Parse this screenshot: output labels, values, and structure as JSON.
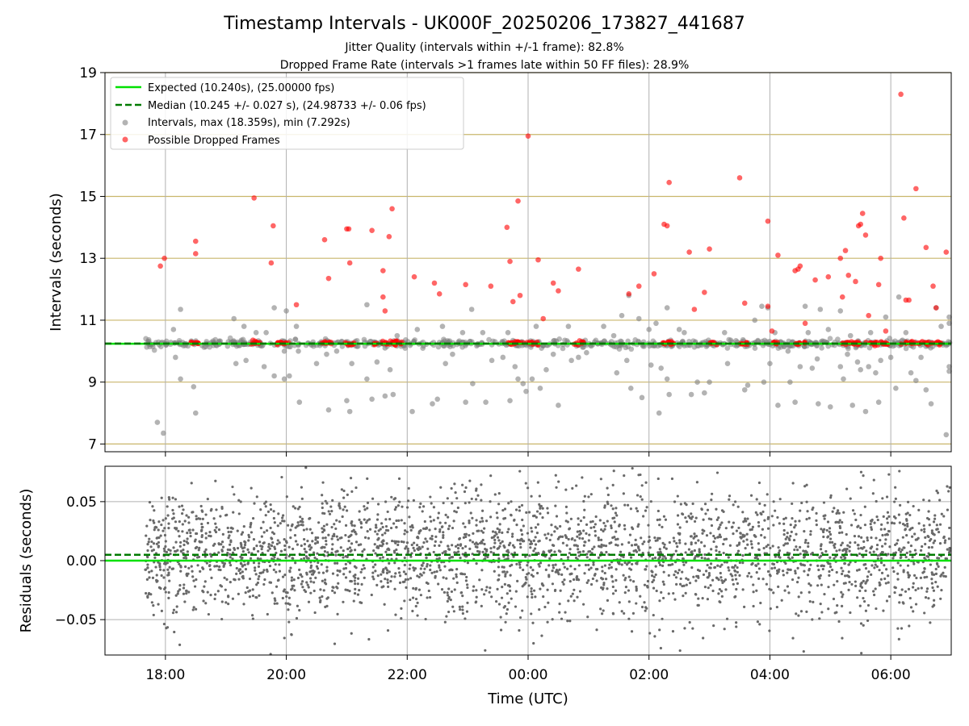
{
  "title": "Timestamp Intervals - UK000F_20250206_173827_441687",
  "subtitle_1": "Jitter Quality (intervals within +/-1 frame): 82.8%",
  "subtitle_2": "Dropped Frame Rate (intervals >1 frames late within 50 FF files): 28.9%",
  "colors": {
    "expected": "#00e000",
    "median": "#007a00",
    "intervals": "#808080",
    "dropped": "#ff0000",
    "hgrid": "#c9b66b",
    "vgrid": "#b0b0b0"
  },
  "chart_data": [
    {
      "type": "scatter",
      "ylabel": "Intervals (seconds)",
      "ylim": [
        6.75,
        19.0
      ],
      "yticks": [
        "7",
        "9",
        "11",
        "13",
        "15",
        "17",
        "19"
      ],
      "xlim": [
        "17:00",
        "07:00"
      ],
      "grid": true,
      "legend_position": "top-left",
      "legend": [
        "Expected (10.240s), (25.00000 fps)",
        "Median (10.245 +/- 0.027 s), (24.98733 +/- 0.06 fps)",
        "Intervals, max (18.359s), min (7.292s)",
        "Possible Dropped Frames"
      ],
      "expected_value": 10.24,
      "median_value": 10.245,
      "series": [
        {
          "name": "Intervals, max (18.359s), min (7.292s)",
          "color": "gray",
          "note_bulk": "dense band of points at ~10.24 s from 17:40 to 07:00",
          "points": [
            [
              "17:52",
              7.7
            ],
            [
              "17:58",
              7.35
            ],
            [
              "18:08",
              10.7
            ],
            [
              "18:10",
              9.8
            ],
            [
              "18:15",
              11.35
            ],
            [
              "18:15",
              9.1
            ],
            [
              "18:28",
              8.85
            ],
            [
              "18:30",
              8.0
            ],
            [
              "19:08",
              11.05
            ],
            [
              "19:10",
              9.6
            ],
            [
              "19:18",
              10.8
            ],
            [
              "19:20",
              9.7
            ],
            [
              "19:30",
              10.6
            ],
            [
              "19:38",
              9.5
            ],
            [
              "19:40",
              10.6
            ],
            [
              "19:48",
              9.2
            ],
            [
              "19:48",
              11.4
            ],
            [
              "19:58",
              9.1
            ],
            [
              "19:58",
              10.0
            ],
            [
              "20:00",
              11.3
            ],
            [
              "20:03",
              9.2
            ],
            [
              "20:10",
              10.8
            ],
            [
              "20:12",
              10.0
            ],
            [
              "20:13",
              8.35
            ],
            [
              "20:30",
              9.6
            ],
            [
              "20:40",
              9.9
            ],
            [
              "20:42",
              8.1
            ],
            [
              "20:50",
              10.0
            ],
            [
              "21:00",
              8.4
            ],
            [
              "21:03",
              8.05
            ],
            [
              "21:05",
              9.6
            ],
            [
              "21:20",
              11.5
            ],
            [
              "21:20",
              9.1
            ],
            [
              "21:25",
              8.45
            ],
            [
              "21:30",
              9.65
            ],
            [
              "21:38",
              10.1
            ],
            [
              "21:38",
              8.55
            ],
            [
              "21:43",
              9.4
            ],
            [
              "21:46",
              8.6
            ],
            [
              "21:50",
              10.5
            ],
            [
              "22:05",
              8.05
            ],
            [
              "22:10",
              10.7
            ],
            [
              "22:25",
              8.3
            ],
            [
              "22:30",
              8.45
            ],
            [
              "22:35",
              10.8
            ],
            [
              "22:38",
              9.6
            ],
            [
              "22:45",
              9.9
            ],
            [
              "22:55",
              10.6
            ],
            [
              "22:58",
              8.35
            ],
            [
              "23:04",
              11.35
            ],
            [
              "23:05",
              8.95
            ],
            [
              "23:15",
              10.6
            ],
            [
              "23:18",
              8.35
            ],
            [
              "23:24",
              9.7
            ],
            [
              "23:35",
              9.8
            ],
            [
              "23:40",
              10.6
            ],
            [
              "23:42",
              8.4
            ],
            [
              "23:47",
              9.5
            ],
            [
              "23:50",
              9.1
            ],
            [
              "23:55",
              8.95
            ],
            [
              "23:58",
              8.7
            ],
            [
              "00:04",
              9.1
            ],
            [
              "00:08",
              10.8
            ],
            [
              "00:12",
              8.8
            ],
            [
              "00:18",
              9.4
            ],
            [
              "00:25",
              9.9
            ],
            [
              "00:30",
              8.25
            ],
            [
              "00:40",
              10.8
            ],
            [
              "00:43",
              9.7
            ],
            [
              "00:50",
              9.8
            ],
            [
              "00:58",
              9.95
            ],
            [
              "01:06",
              10.3
            ],
            [
              "01:15",
              10.8
            ],
            [
              "01:25",
              10.5
            ],
            [
              "01:28",
              9.3
            ],
            [
              "01:33",
              11.15
            ],
            [
              "01:38",
              9.7
            ],
            [
              "01:40",
              11.8
            ],
            [
              "01:42",
              8.8
            ],
            [
              "01:50",
              11.05
            ],
            [
              "01:53",
              8.5
            ],
            [
              "02:00",
              10.7
            ],
            [
              "02:02",
              9.55
            ],
            [
              "02:07",
              10.9
            ],
            [
              "02:10",
              8.0
            ],
            [
              "02:12",
              9.45
            ],
            [
              "02:18",
              11.4
            ],
            [
              "02:18",
              9.1
            ],
            [
              "02:20",
              8.6
            ],
            [
              "02:30",
              10.7
            ],
            [
              "02:35",
              10.6
            ],
            [
              "02:42",
              8.6
            ],
            [
              "02:48",
              9.0
            ],
            [
              "02:55",
              8.65
            ],
            [
              "03:00",
              9.0
            ],
            [
              "03:15",
              10.6
            ],
            [
              "03:18",
              9.6
            ],
            [
              "03:25",
              10.2
            ],
            [
              "03:35",
              8.75
            ],
            [
              "03:38",
              8.9
            ],
            [
              "03:45",
              11.0
            ],
            [
              "03:52",
              11.45
            ],
            [
              "03:54",
              9.0
            ],
            [
              "03:58",
              11.4
            ],
            [
              "04:00",
              9.6
            ],
            [
              "04:05",
              10.6
            ],
            [
              "04:08",
              8.25
            ],
            [
              "04:18",
              10.0
            ],
            [
              "04:20",
              9.0
            ],
            [
              "04:25",
              8.35
            ],
            [
              "04:30",
              9.5
            ],
            [
              "04:35",
              11.45
            ],
            [
              "04:38",
              10.6
            ],
            [
              "04:42",
              9.45
            ],
            [
              "04:47",
              9.75
            ],
            [
              "04:48",
              8.3
            ],
            [
              "04:50",
              11.35
            ],
            [
              "04:58",
              10.7
            ],
            [
              "05:00",
              8.2
            ],
            [
              "05:10",
              9.5
            ],
            [
              "05:10",
              11.3
            ],
            [
              "05:13",
              9.1
            ],
            [
              "05:17",
              9.9
            ],
            [
              "05:20",
              10.5
            ],
            [
              "05:22",
              8.25
            ],
            [
              "05:27",
              9.65
            ],
            [
              "05:30",
              9.4
            ],
            [
              "05:35",
              8.05
            ],
            [
              "05:38",
              9.5
            ],
            [
              "05:40",
              10.6
            ],
            [
              "05:45",
              9.3
            ],
            [
              "05:48",
              8.35
            ],
            [
              "05:50",
              9.7
            ],
            [
              "05:55",
              11.1
            ],
            [
              "06:00",
              9.8
            ],
            [
              "06:05",
              8.8
            ],
            [
              "06:08",
              11.75
            ],
            [
              "06:10",
              10.2
            ],
            [
              "06:15",
              10.6
            ],
            [
              "06:20",
              9.3
            ],
            [
              "06:25",
              9.05
            ],
            [
              "06:30",
              9.8
            ],
            [
              "06:35",
              8.75
            ],
            [
              "06:38",
              10.3
            ],
            [
              "06:40",
              8.3
            ],
            [
              "06:45",
              11.4
            ],
            [
              "06:50",
              10.8
            ],
            [
              "06:55",
              7.3
            ],
            [
              "06:58",
              9.5
            ],
            [
              "06:58",
              11.1
            ],
            [
              "06:58",
              9.35
            ],
            [
              "06:58",
              10.9
            ]
          ]
        },
        {
          "name": "Possible Dropped Frames",
          "color": "red",
          "note_bulk": "clusters of points at ~10.25 s",
          "points": [
            [
              "17:55",
              12.75
            ],
            [
              "17:59",
              13.0
            ],
            [
              "18:30",
              13.55
            ],
            [
              "18:30",
              13.15
            ],
            [
              "19:28",
              14.95
            ],
            [
              "19:45",
              12.85
            ],
            [
              "19:47",
              14.05
            ],
            [
              "20:10",
              11.5
            ],
            [
              "20:38",
              13.6
            ],
            [
              "20:42",
              12.35
            ],
            [
              "21:00",
              13.95
            ],
            [
              "21:02",
              13.95
            ],
            [
              "21:03",
              12.85
            ],
            [
              "21:25",
              13.9
            ],
            [
              "21:36",
              12.6
            ],
            [
              "21:36",
              11.75
            ],
            [
              "21:38",
              11.3
            ],
            [
              "21:42",
              13.7
            ],
            [
              "21:45",
              14.6
            ],
            [
              "22:07",
              12.4
            ],
            [
              "22:27",
              12.2
            ],
            [
              "22:32",
              11.85
            ],
            [
              "22:58",
              12.15
            ],
            [
              "23:23",
              12.1
            ],
            [
              "23:39",
              14.0
            ],
            [
              "23:42",
              12.9
            ],
            [
              "23:45",
              11.6
            ],
            [
              "23:50",
              14.85
            ],
            [
              "23:52",
              11.8
            ],
            [
              "24:00",
              16.95
            ],
            [
              "24:10",
              12.95
            ],
            [
              "24:15",
              11.05
            ],
            [
              "24:25",
              12.2
            ],
            [
              "24:30",
              11.95
            ],
            [
              "24:50",
              12.65
            ],
            [
              "25:40",
              11.85
            ],
            [
              "25:50",
              12.1
            ],
            [
              "26:05",
              12.5
            ],
            [
              "26:15",
              14.1
            ],
            [
              "26:18",
              14.05
            ],
            [
              "26:20",
              15.45
            ],
            [
              "26:40",
              13.2
            ],
            [
              "26:45",
              11.35
            ],
            [
              "26:55",
              11.9
            ],
            [
              "27:00",
              13.3
            ],
            [
              "27:30",
              15.6
            ],
            [
              "27:35",
              11.55
            ],
            [
              "27:58",
              14.2
            ],
            [
              "27:58",
              11.45
            ],
            [
              "28:02",
              10.65
            ],
            [
              "28:08",
              13.1
            ],
            [
              "28:25",
              12.6
            ],
            [
              "28:28",
              12.65
            ],
            [
              "28:30",
              12.75
            ],
            [
              "28:35",
              10.9
            ],
            [
              "28:45",
              12.3
            ],
            [
              "28:58",
              12.4
            ],
            [
              "29:10",
              13.0
            ],
            [
              "29:12",
              11.75
            ],
            [
              "29:15",
              13.25
            ],
            [
              "29:18",
              12.45
            ],
            [
              "29:25",
              12.25
            ],
            [
              "29:28",
              14.05
            ],
            [
              "29:30",
              14.1
            ],
            [
              "29:32",
              14.45
            ],
            [
              "29:35",
              13.75
            ],
            [
              "29:38",
              11.15
            ],
            [
              "29:48",
              12.15
            ],
            [
              "29:50",
              13.0
            ],
            [
              "29:55",
              10.65
            ],
            [
              "30:10",
              18.3
            ],
            [
              "30:13",
              14.3
            ],
            [
              "30:15",
              11.65
            ],
            [
              "30:18",
              11.65
            ],
            [
              "30:25",
              15.25
            ],
            [
              "30:35",
              13.35
            ],
            [
              "30:42",
              12.1
            ],
            [
              "30:45",
              11.4
            ],
            [
              "30:55",
              13.2
            ]
          ]
        }
      ]
    },
    {
      "type": "scatter",
      "ylabel": "Residuals (seconds)",
      "xlabel": "Time (UTC)",
      "ylim": [
        -0.08,
        0.08
      ],
      "yticks": [
        "−0.05",
        "0.00",
        "0.05"
      ],
      "xticks": [
        "18:00",
        "20:00",
        "22:00",
        "00:00",
        "02:00",
        "04:00",
        "06:00"
      ],
      "grid": true,
      "expected_value": 0.0,
      "median_value": 0.005,
      "series": [
        {
          "name": "residuals",
          "color": "dimgray",
          "note_bulk": "about 3000 points, roughly normal around 0.005 with spread ~0.027 s, from 17:40 to 07:00",
          "points": []
        }
      ]
    }
  ]
}
